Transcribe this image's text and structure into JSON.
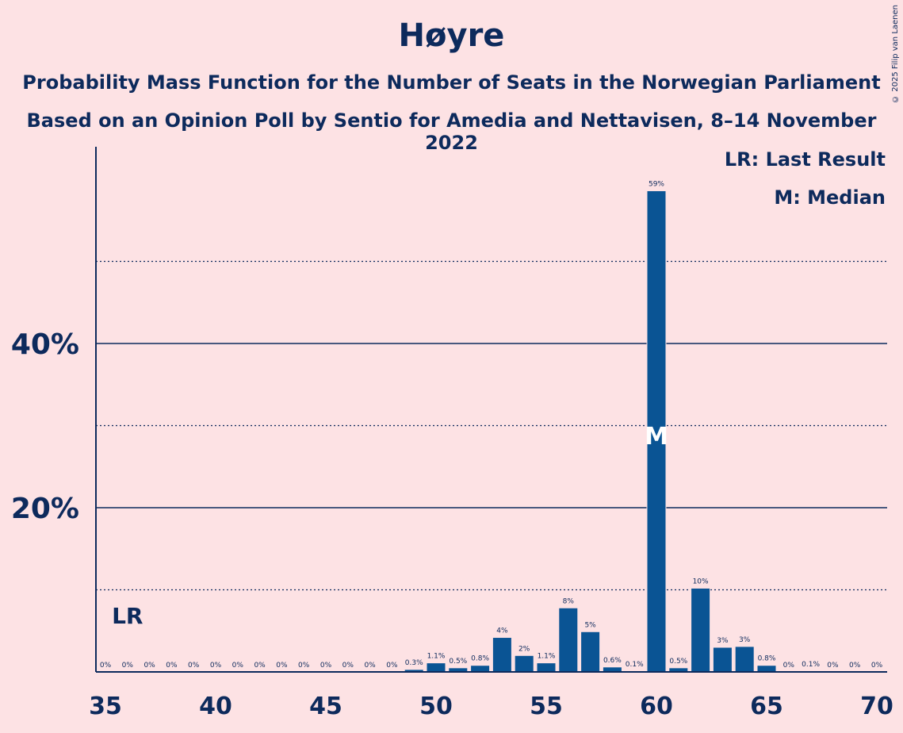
{
  "title": "Høyre",
  "subtitle_1": "Probability Mass Function for the Number of Seats in the Norwegian Parliament",
  "subtitle_2": "Based on an Opinion Poll by Sentio for Amedia and Nettavisen, 8–14 November 2022",
  "credit": "© 2025 Filip van Laenen",
  "legend": {
    "last_result": "LR: Last Result",
    "median": "M: Median"
  },
  "markers": {
    "last_result_label": "LR",
    "median_label": "M"
  },
  "colors": {
    "bar": "#0a5494",
    "text": "#0d2a5c",
    "background": "#fde2e4"
  },
  "chart_data": {
    "type": "bar",
    "x": [
      35,
      36,
      37,
      38,
      39,
      40,
      41,
      42,
      43,
      44,
      45,
      46,
      47,
      48,
      49,
      50,
      51,
      52,
      53,
      54,
      55,
      56,
      57,
      58,
      59,
      60,
      61,
      62,
      63,
      64,
      65,
      66,
      67,
      68,
      69,
      70
    ],
    "values": [
      0,
      0,
      0,
      0,
      0,
      0,
      0,
      0,
      0,
      0,
      0,
      0,
      0,
      0,
      0.3,
      1.1,
      0.5,
      0.8,
      4.2,
      2.0,
      1.1,
      7.8,
      4.9,
      0.6,
      0.1,
      58.6,
      0.5,
      10.2,
      3.0,
      3.1,
      0.8,
      0,
      0.1,
      0,
      0,
      0
    ],
    "labels": [
      "0%",
      "0%",
      "0%",
      "0%",
      "0%",
      "0%",
      "0%",
      "0%",
      "0%",
      "0%",
      "0%",
      "0%",
      "0%",
      "0%",
      "0.3%",
      "1.1%",
      "0.5%",
      "0.8%",
      "4%",
      "2%",
      "1.1%",
      "8%",
      "5%",
      "0.6%",
      "0.1%",
      "59%",
      "0.5%",
      "10%",
      "3%",
      "3%",
      "0.8%",
      "0%",
      "0.1%",
      "0%",
      "0%",
      "0%"
    ],
    "x_ticks": [
      35,
      40,
      45,
      50,
      55,
      60,
      65,
      70
    ],
    "y_ticks": [
      20,
      40
    ],
    "y_tick_labels": [
      "20%",
      "40%"
    ],
    "minor_gridlines": [
      10,
      30,
      50
    ],
    "ylim": [
      0,
      64
    ],
    "last_result": 36,
    "median": 60,
    "legend_position": "top-right"
  }
}
